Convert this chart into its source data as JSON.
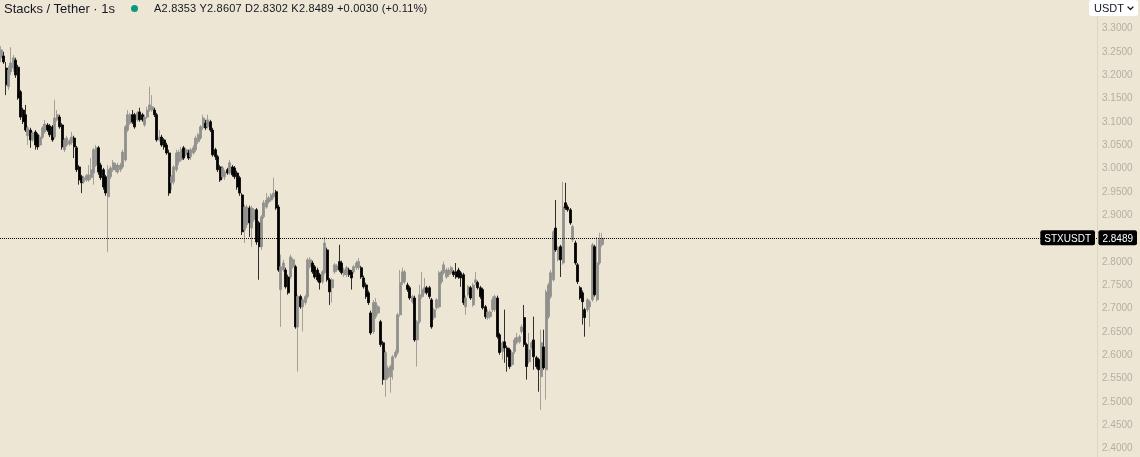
{
  "chart_data": {
    "type": "candlestick",
    "title": "Stacks / Tether · 1s",
    "subtitle": "A2.8353 Y2.8607 D2.8302 K2.8489 +0.0030 (+0.11%)",
    "ylabel": "USDT",
    "categories": [
      null,
      null,
      null,
      null,
      null,
      null,
      null,
      null,
      null,
      null,
      null,
      null,
      null,
      null,
      null,
      null,
      null,
      null,
      null,
      null,
      null,
      null,
      null,
      null,
      null,
      null,
      null,
      null,
      null,
      null,
      null,
      null,
      null,
      null,
      null,
      null,
      null,
      null,
      null,
      null,
      null,
      null,
      null,
      null,
      null,
      null,
      null,
      null,
      null,
      null,
      null,
      null,
      null,
      null,
      null,
      null,
      null,
      null,
      null,
      null,
      null,
      null,
      null,
      null,
      null,
      null,
      null,
      null,
      null,
      null,
      null,
      null,
      null,
      null,
      null,
      null,
      null,
      null,
      null,
      null,
      null,
      null,
      null,
      null,
      null,
      null,
      null,
      null,
      null,
      null,
      null,
      null,
      null,
      null,
      null,
      null,
      null,
      null,
      null,
      null,
      null,
      null,
      null,
      null,
      null,
      null,
      null,
      null,
      null,
      null,
      null,
      null,
      null,
      null,
      null,
      null,
      null,
      null,
      null,
      null,
      null,
      null,
      null,
      null,
      null,
      null,
      null,
      null,
      null,
      null,
      null,
      null,
      null,
      null,
      null,
      null,
      null,
      null,
      null,
      null,
      null,
      null,
      null,
      null,
      null,
      null,
      null,
      null,
      null,
      null,
      null,
      null,
      null,
      null,
      null,
      null,
      null,
      null,
      null,
      null,
      null,
      null,
      null,
      null,
      null,
      null,
      null,
      null,
      null,
      null,
      null,
      null,
      null,
      null,
      null,
      null,
      null,
      null,
      null,
      null,
      null,
      null,
      null,
      null,
      null,
      null,
      null,
      null,
      null,
      null,
      null,
      null,
      null,
      null,
      null,
      null,
      null,
      null,
      null,
      null,
      null,
      null,
      null,
      null,
      null,
      null,
      null,
      null,
      null,
      null,
      null,
      null,
      null,
      null,
      null,
      null,
      null,
      null,
      null,
      null,
      null,
      null,
      null,
      null,
      null,
      null,
      null,
      null,
      null,
      null,
      null,
      null,
      null,
      null,
      null,
      null,
      null,
      null,
      null,
      null,
      null,
      null,
      null,
      null,
      null,
      null,
      null,
      null,
      null,
      null,
      null,
      null,
      null,
      null,
      null,
      null,
      null,
      null,
      null,
      null,
      null,
      null,
      null,
      null,
      null,
      null,
      null,
      null,
      null,
      null,
      null,
      null,
      null,
      null,
      null,
      null,
      null,
      null,
      null,
      null,
      null,
      null,
      null,
      null,
      null,
      null,
      null,
      null,
      null,
      null,
      null,
      null,
      null,
      null,
      null,
      null,
      null,
      null,
      null,
      null,
      null,
      null,
      null,
      null,
      null,
      null,
      null,
      null,
      null,
      null,
      null,
      null,
      null,
      null,
      null,
      null,
      null,
      null,
      null,
      null,
      null,
      null,
      null,
      null,
      null,
      null,
      null,
      null,
      null,
      null,
      null,
      null,
      null,
      null,
      null,
      null,
      null,
      null,
      null,
      null,
      null,
      null,
      null,
      null,
      null,
      null,
      null,
      null,
      null,
      null,
      null,
      null,
      null,
      null,
      null,
      null,
      null,
      null,
      null,
      null,
      null,
      null,
      null,
      null,
      null,
      null,
      null,
      null,
      null,
      null,
      null,
      null,
      null,
      null,
      null,
      null,
      null,
      null,
      null,
      null,
      null,
      null,
      null,
      null,
      null,
      null,
      null,
      null,
      null,
      null,
      null,
      null,
      null,
      null,
      null,
      null,
      null,
      null,
      null,
      null,
      null,
      null,
      null,
      null,
      null,
      null,
      null,
      null,
      null,
      null,
      null,
      null,
      null,
      null,
      null,
      null,
      null,
      null,
      null,
      null,
      null,
      null,
      null,
      null,
      null,
      null,
      null,
      null,
      null,
      null,
      null,
      null,
      null,
      null,
      null,
      null,
      null,
      null,
      null,
      null,
      null,
      null,
      null,
      null,
      null,
      null,
      null,
      null,
      null,
      null,
      null
    ],
    "ohlc": [
      [
        3.236,
        3.261,
        3.227,
        3.253
      ],
      [
        3.24,
        3.249,
        3.223,
        3.227
      ],
      [
        3.214,
        3.227,
        3.156,
        3.178
      ],
      [
        3.174,
        3.219,
        3.167,
        3.21
      ],
      [
        3.206,
        3.259,
        3.199,
        3.225
      ],
      [
        3.214,
        3.242,
        3.206,
        3.236
      ],
      [
        3.231,
        3.236,
        3.193,
        3.199
      ],
      [
        3.216,
        3.221,
        3.146,
        3.15
      ],
      [
        3.163,
        3.167,
        3.103,
        3.109
      ],
      [
        3.124,
        3.129,
        3.094,
        3.099
      ],
      [
        3.114,
        3.135,
        3.077,
        3.081
      ],
      [
        3.069,
        3.09,
        3.049,
        3.086
      ],
      [
        3.081,
        3.086,
        3.043,
        3.06
      ],
      [
        3.06,
        3.079,
        3.056,
        3.075
      ],
      [
        3.077,
        3.081,
        3.039,
        3.049
      ],
      [
        3.071,
        3.075,
        3.039,
        3.045
      ],
      [
        3.049,
        3.071,
        3.045,
        3.066
      ],
      [
        3.066,
        3.09,
        3.062,
        3.086
      ],
      [
        3.077,
        3.103,
        3.073,
        3.094
      ],
      [
        3.092,
        3.096,
        3.077,
        3.081
      ],
      [
        3.09,
        3.094,
        3.066,
        3.071
      ],
      [
        3.088,
        3.092,
        3.056,
        3.06
      ],
      [
        3.066,
        3.146,
        3.062,
        3.107
      ],
      [
        3.103,
        3.124,
        3.099,
        3.114
      ],
      [
        3.109,
        3.114,
        3.084,
        3.088
      ],
      [
        3.092,
        3.096,
        3.039,
        3.045
      ],
      [
        3.039,
        3.064,
        3.034,
        3.06
      ],
      [
        3.049,
        3.069,
        3.045,
        3.064
      ],
      [
        3.051,
        3.062,
        3.047,
        3.058
      ],
      [
        3.054,
        3.077,
        3.049,
        3.066
      ],
      [
        3.064,
        3.069,
        3.021,
        3.045
      ],
      [
        3.043,
        3.047,
        2.991,
        2.996
      ],
      [
        3.002,
        3.006,
        2.964,
        2.974
      ],
      [
        2.981,
        2.985,
        2.946,
        2.968
      ],
      [
        2.97,
        2.983,
        2.966,
        2.979
      ],
      [
        2.974,
        2.987,
        2.97,
        2.983
      ],
      [
        2.974,
        3.006,
        2.97,
        2.985
      ],
      [
        2.979,
        3.021,
        2.974,
        2.996
      ],
      [
        2.989,
        3.043,
        2.964,
        3.039
      ],
      [
        3.006,
        3.049,
        3.002,
        3.043
      ],
      [
        3.043,
        3.047,
        2.985,
        2.991
      ],
      [
        3.006,
        3.011,
        2.974,
        2.979
      ],
      [
        2.996,
        3.0,
        2.953,
        2.959
      ],
      [
        2.981,
        2.985,
        2.94,
        2.946
      ],
      [
        2.938,
        3.006,
        2.82,
        2.996
      ],
      [
        2.981,
        3.004,
        2.976,
        3.0
      ],
      [
        2.996,
        3.017,
        2.991,
        3.011
      ],
      [
        2.996,
        3.011,
        2.991,
        3.006
      ],
      [
        2.991,
        3.011,
        2.987,
        3.006
      ],
      [
        2.996,
        3.011,
        2.991,
        3.006
      ],
      [
        3.002,
        3.039,
        2.998,
        3.034
      ],
      [
        3.017,
        3.092,
        3.013,
        3.088
      ],
      [
        3.081,
        3.124,
        3.077,
        3.114
      ],
      [
        3.096,
        3.118,
        3.092,
        3.114
      ],
      [
        3.114,
        3.124,
        3.094,
        3.099
      ],
      [
        3.114,
        3.118,
        3.084,
        3.088
      ],
      [
        3.103,
        3.122,
        3.099,
        3.118
      ],
      [
        3.12,
        3.129,
        3.099,
        3.103
      ],
      [
        3.114,
        3.118,
        3.099,
        3.103
      ],
      [
        3.092,
        3.114,
        3.088,
        3.109
      ],
      [
        3.109,
        3.131,
        3.105,
        3.124
      ],
      [
        3.124,
        3.174,
        3.12,
        3.135
      ],
      [
        3.124,
        3.156,
        3.12,
        3.131
      ],
      [
        3.124,
        3.129,
        3.109,
        3.114
      ],
      [
        3.114,
        3.118,
        3.056,
        3.06
      ],
      [
        3.06,
        3.081,
        3.056,
        3.066
      ],
      [
        3.066,
        3.071,
        3.045,
        3.049
      ],
      [
        3.06,
        3.064,
        3.039,
        3.045
      ],
      [
        3.049,
        3.054,
        3.028,
        3.032
      ],
      [
        3.032,
        3.039,
        2.94,
        2.946
      ],
      [
        2.968,
        2.985,
        2.953,
        2.981
      ],
      [
        2.97,
        3.006,
        2.964,
        3.002
      ],
      [
        2.996,
        3.039,
        2.991,
        3.032
      ],
      [
        3.013,
        3.039,
        3.006,
        3.034
      ],
      [
        3.017,
        3.045,
        3.013,
        3.039
      ],
      [
        3.043,
        3.047,
        3.017,
        3.021
      ],
      [
        3.028,
        3.043,
        3.024,
        3.039
      ],
      [
        3.032,
        3.039,
        3.017,
        3.021
      ],
      [
        3.024,
        3.043,
        3.017,
        3.039
      ],
      [
        3.032,
        3.049,
        3.028,
        3.043
      ],
      [
        3.039,
        3.069,
        3.034,
        3.064
      ],
      [
        3.056,
        3.075,
        3.051,
        3.071
      ],
      [
        3.064,
        3.092,
        3.06,
        3.088
      ],
      [
        3.086,
        3.114,
        3.081,
        3.107
      ],
      [
        3.096,
        3.103,
        3.081,
        3.086
      ],
      [
        3.088,
        3.114,
        3.084,
        3.103
      ],
      [
        3.099,
        3.103,
        3.077,
        3.081
      ],
      [
        3.081,
        3.086,
        3.024,
        3.028
      ],
      [
        3.039,
        3.043,
        3.017,
        3.024
      ],
      [
        3.024,
        3.028,
        2.991,
        2.996
      ],
      [
        3.002,
        3.006,
        2.97,
        2.974
      ],
      [
        2.981,
        3.004,
        2.976,
        3.0
      ],
      [
        2.981,
        2.996,
        2.974,
        2.991
      ],
      [
        2.996,
        3.0,
        2.985,
        2.989
      ],
      [
        2.989,
        3.017,
        2.985,
        3.011
      ],
      [
        3.002,
        3.006,
        2.981,
        2.985
      ],
      [
        3.0,
        3.004,
        2.976,
        2.981
      ],
      [
        2.989,
        2.994,
        2.953,
        2.959
      ],
      [
        2.979,
        2.983,
        2.94,
        2.946
      ],
      [
        2.942,
        2.946,
        2.856,
        2.863
      ],
      [
        2.867,
        2.921,
        2.839,
        2.916
      ],
      [
        2.878,
        2.921,
        2.871,
        2.916
      ],
      [
        2.914,
        2.919,
        2.852,
        2.882
      ],
      [
        2.871,
        2.919,
        2.831,
        2.914
      ],
      [
        2.889,
        2.914,
        2.884,
        2.91
      ],
      [
        2.91,
        2.914,
        2.835,
        2.841
      ],
      [
        2.882,
        2.886,
        2.76,
        2.831
      ],
      [
        2.831,
        2.899,
        2.824,
        2.895
      ],
      [
        2.895,
        2.931,
        2.891,
        2.925
      ],
      [
        2.916,
        2.946,
        2.912,
        2.931
      ],
      [
        2.927,
        2.94,
        2.923,
        2.936
      ],
      [
        2.931,
        2.946,
        2.927,
        2.942
      ],
      [
        2.938,
        2.979,
        2.934,
        2.946
      ],
      [
        2.949,
        2.953,
        2.91,
        2.914
      ],
      [
        2.916,
        2.921,
        2.777,
        2.781
      ],
      [
        2.739,
        2.814,
        2.659,
        2.788
      ],
      [
        2.781,
        2.803,
        2.777,
        2.796
      ],
      [
        2.781,
        2.786,
        2.741,
        2.745
      ],
      [
        2.766,
        2.771,
        2.728,
        2.732
      ],
      [
        2.766,
        2.814,
        2.762,
        2.809
      ],
      [
        2.788,
        2.807,
        2.784,
        2.803
      ],
      [
        2.788,
        2.792,
        2.655,
        2.659
      ],
      [
        2.659,
        2.728,
        2.563,
        2.724
      ],
      [
        2.724,
        2.728,
        2.698,
        2.702
      ],
      [
        2.702,
        2.721,
        2.649,
        2.717
      ],
      [
        2.711,
        2.728,
        2.706,
        2.724
      ],
      [
        2.724,
        2.807,
        2.719,
        2.803
      ],
      [
        2.788,
        2.809,
        2.784,
        2.803
      ],
      [
        2.796,
        2.801,
        2.773,
        2.777
      ],
      [
        2.788,
        2.792,
        2.762,
        2.766
      ],
      [
        2.781,
        2.786,
        2.756,
        2.76
      ],
      [
        2.771,
        2.775,
        2.739,
        2.754
      ],
      [
        2.756,
        2.781,
        2.751,
        2.777
      ],
      [
        2.775,
        2.852,
        2.771,
        2.839
      ],
      [
        2.824,
        2.829,
        2.756,
        2.76
      ],
      [
        2.76,
        2.764,
        2.706,
        2.734
      ],
      [
        2.743,
        2.764,
        2.711,
        2.76
      ],
      [
        2.777,
        2.796,
        2.773,
        2.792
      ],
      [
        2.781,
        2.794,
        2.777,
        2.79
      ],
      [
        2.799,
        2.835,
        2.777,
        2.781
      ],
      [
        2.796,
        2.801,
        2.771,
        2.775
      ],
      [
        2.771,
        2.786,
        2.766,
        2.781
      ],
      [
        2.771,
        2.79,
        2.766,
        2.786
      ],
      [
        2.781,
        2.786,
        2.766,
        2.771
      ],
      [
        2.777,
        2.781,
        2.739,
        2.764
      ],
      [
        2.777,
        2.792,
        2.773,
        2.788
      ],
      [
        2.786,
        2.801,
        2.781,
        2.796
      ],
      [
        2.786,
        2.807,
        2.781,
        2.799
      ],
      [
        2.786,
        2.79,
        2.762,
        2.766
      ],
      [
        2.764,
        2.769,
        2.741,
        2.745
      ],
      [
        2.749,
        2.754,
        2.719,
        2.724
      ],
      [
        2.732,
        2.737,
        2.706,
        2.711
      ],
      [
        2.689,
        2.694,
        2.642,
        2.646
      ],
      [
        2.649,
        2.717,
        2.644,
        2.711
      ],
      [
        2.681,
        2.721,
        2.676,
        2.711
      ],
      [
        2.689,
        2.706,
        2.685,
        2.702
      ],
      [
        2.67,
        2.674,
        2.616,
        2.621
      ],
      [
        2.625,
        2.629,
        2.535,
        2.546
      ],
      [
        2.546,
        2.608,
        2.509,
        2.604
      ],
      [
        2.55,
        2.576,
        2.546,
        2.571
      ],
      [
        2.552,
        2.578,
        2.518,
        2.574
      ],
      [
        2.567,
        2.599,
        2.546,
        2.595
      ],
      [
        2.595,
        2.61,
        2.591,
        2.604
      ],
      [
        2.604,
        2.689,
        2.599,
        2.685
      ],
      [
        2.685,
        2.781,
        2.681,
        2.754
      ],
      [
        2.754,
        2.786,
        2.749,
        2.777
      ],
      [
        2.756,
        2.781,
        2.751,
        2.777
      ],
      [
        2.749,
        2.754,
        2.734,
        2.739
      ],
      [
        2.743,
        2.747,
        2.717,
        2.721
      ],
      [
        2.713,
        2.728,
        2.709,
        2.724
      ],
      [
        2.721,
        2.726,
        2.627,
        2.631
      ],
      [
        2.631,
        2.674,
        2.574,
        2.67
      ],
      [
        2.67,
        2.749,
        2.666,
        2.728
      ],
      [
        2.724,
        2.777,
        2.719,
        2.739
      ],
      [
        2.734,
        2.764,
        2.73,
        2.743
      ],
      [
        2.743,
        2.747,
        2.728,
        2.732
      ],
      [
        2.743,
        2.747,
        2.719,
        2.724
      ],
      [
        2.717,
        2.721,
        2.655,
        2.659
      ],
      [
        2.679,
        2.7,
        2.674,
        2.696
      ],
      [
        2.7,
        2.721,
        2.696,
        2.717
      ],
      [
        2.702,
        2.779,
        2.698,
        2.775
      ],
      [
        2.756,
        2.781,
        2.751,
        2.777
      ],
      [
        2.775,
        2.799,
        2.771,
        2.792
      ],
      [
        2.766,
        2.786,
        2.762,
        2.781
      ],
      [
        2.771,
        2.786,
        2.766,
        2.781
      ],
      [
        2.775,
        2.79,
        2.771,
        2.786
      ],
      [
        2.777,
        2.781,
        2.766,
        2.771
      ],
      [
        2.777,
        2.796,
        2.762,
        2.766
      ],
      [
        2.781,
        2.786,
        2.762,
        2.766
      ],
      [
        2.775,
        2.779,
        2.745,
        2.764
      ],
      [
        2.771,
        2.775,
        2.706,
        2.711
      ],
      [
        2.702,
        2.726,
        2.685,
        2.721
      ],
      [
        2.728,
        2.749,
        2.724,
        2.745
      ],
      [
        2.743,
        2.747,
        2.717,
        2.721
      ],
      [
        2.706,
        2.754,
        2.702,
        2.749
      ],
      [
        2.754,
        2.777,
        2.749,
        2.76
      ],
      [
        2.754,
        2.758,
        2.739,
        2.743
      ],
      [
        2.743,
        2.747,
        2.719,
        2.724
      ],
      [
        2.739,
        2.743,
        2.696,
        2.7
      ],
      [
        2.702,
        2.706,
        2.676,
        2.681
      ],
      [
        2.679,
        2.696,
        2.674,
        2.691
      ],
      [
        2.681,
        2.696,
        2.676,
        2.691
      ],
      [
        2.696,
        2.724,
        2.691,
        2.717
      ],
      [
        2.696,
        2.728,
        2.691,
        2.724
      ],
      [
        2.721,
        2.726,
        2.634,
        2.638
      ],
      [
        2.642,
        2.646,
        2.599,
        2.604
      ],
      [
        2.606,
        2.629,
        2.589,
        2.625
      ],
      [
        2.627,
        2.696,
        2.582,
        2.614
      ],
      [
        2.614,
        2.619,
        2.563,
        2.595
      ],
      [
        2.61,
        2.614,
        2.569,
        2.574
      ],
      [
        2.578,
        2.608,
        2.574,
        2.604
      ],
      [
        2.606,
        2.636,
        2.601,
        2.631
      ],
      [
        2.625,
        2.646,
        2.621,
        2.636
      ],
      [
        2.627,
        2.642,
        2.623,
        2.638
      ],
      [
        2.649,
        2.664,
        2.644,
        2.659
      ],
      [
        2.679,
        2.706,
        2.616,
        2.621
      ],
      [
        2.621,
        2.625,
        2.546,
        2.574
      ],
      [
        2.584,
        2.646,
        2.58,
        2.61
      ],
      [
        2.614,
        2.629,
        2.61,
        2.625
      ],
      [
        2.631,
        2.681,
        2.567,
        2.595
      ],
      [
        2.593,
        2.597,
        2.569,
        2.574
      ],
      [
        2.589,
        2.593,
        2.52,
        2.567
      ],
      [
        2.552,
        2.653,
        2.481,
        2.625
      ],
      [
        2.616,
        2.653,
        2.567,
        2.571
      ],
      [
        2.567,
        2.739,
        2.503,
        2.734
      ],
      [
        2.681,
        2.754,
        2.676,
        2.749
      ],
      [
        2.724,
        2.781,
        2.719,
        2.775
      ],
      [
        2.76,
        2.867,
        2.756,
        2.863
      ],
      [
        2.871,
        2.931,
        2.82,
        2.824
      ],
      [
        2.803,
        2.833,
        2.799,
        2.829
      ],
      [
        2.831,
        2.835,
        2.766,
        2.803
      ],
      [
        2.796,
        2.97,
        2.792,
        2.916
      ],
      [
        2.925,
        2.968,
        2.91,
        2.914
      ],
      [
        2.916,
        2.921,
        2.906,
        2.91
      ],
      [
        2.91,
        2.914,
        2.878,
        2.882
      ],
      [
        2.846,
        2.878,
        2.841,
        2.874
      ],
      [
        2.839,
        2.844,
        2.792,
        2.796
      ],
      [
        2.792,
        2.796,
        2.751,
        2.756
      ],
      [
        2.743,
        2.747,
        2.717,
        2.721
      ],
      [
        2.732,
        2.737,
        2.664,
        2.713
      ],
      [
        2.696,
        2.7,
        2.638,
        2.679
      ],
      [
        2.696,
        2.721,
        2.691,
        2.717
      ],
      [
        2.702,
        2.717,
        2.659,
        2.713
      ],
      [
        2.717,
        2.839,
        2.713,
        2.835
      ],
      [
        2.831,
        2.835,
        2.724,
        2.728
      ],
      [
        2.717,
        2.852,
        2.713,
        2.796
      ],
      [
        2.796,
        2.861,
        2.792,
        2.846
      ],
      [
        2.8353,
        2.8607,
        2.8302,
        2.8489
      ],
      null,
      null,
      null,
      null,
      null,
      null,
      null,
      null,
      null,
      null,
      null,
      null,
      null,
      null,
      null,
      null,
      null,
      null,
      null,
      null,
      null,
      null,
      null,
      null,
      null,
      null,
      null,
      null,
      null,
      null,
      null,
      null,
      null,
      null,
      null,
      null,
      null,
      null,
      null,
      null,
      null,
      null,
      null,
      null,
      null,
      null,
      null,
      null,
      null,
      null,
      null,
      null,
      null,
      null,
      null,
      null,
      null,
      null,
      null,
      null,
      null,
      null,
      null,
      null,
      null,
      null,
      null,
      null,
      null,
      null,
      null,
      null,
      null,
      null,
      null,
      null,
      null,
      null,
      null,
      null,
      null,
      null,
      null,
      null,
      null,
      null,
      null,
      null,
      null,
      null,
      null,
      null,
      null,
      null,
      null,
      null,
      null,
      null,
      null,
      null,
      null,
      null,
      null,
      null,
      null,
      null,
      null,
      null,
      null,
      null,
      null,
      null,
      null,
      null,
      null,
      null,
      null,
      null,
      null,
      null,
      null,
      null,
      null,
      null,
      null,
      null,
      null,
      null,
      null,
      null,
      null,
      null,
      null,
      null,
      null,
      null,
      null,
      null,
      null,
      null,
      null,
      null,
      null,
      null,
      null,
      null,
      null,
      null,
      null,
      null,
      null,
      null,
      null,
      null,
      null,
      null,
      null,
      null,
      null,
      null,
      null,
      null,
      null,
      null,
      null,
      null,
      null,
      null,
      null,
      null,
      null,
      null,
      null,
      null,
      null,
      null,
      null,
      null,
      null,
      null,
      null,
      null,
      null,
      null,
      null,
      null,
      null,
      null,
      null,
      null,
      null,
      null,
      null,
      null,
      null,
      null,
      null,
      null,
      null,
      null,
      null,
      null,
      null
    ],
    "colors": [
      "#8f8f8b",
      "#000000",
      "#000000",
      "#8f8f8b",
      "#8f8f8b",
      "#8f8f8b",
      "#000000",
      "#000000",
      "#000000",
      "#000000",
      "#000000",
      "#8f8f8b",
      "#000000",
      "#8f8f8b",
      "#000000",
      "#000000",
      "#8f8f8b",
      "#8f8f8b",
      "#8f8f8b",
      "#000000",
      "#000000",
      "#000000",
      "#8f8f8b",
      "#8f8f8b",
      "#000000",
      "#000000",
      "#8f8f8b",
      "#8f8f8b",
      "#8f8f8b",
      "#8f8f8b",
      "#000000",
      "#000000",
      "#000000",
      "#000000",
      "#8f8f8b",
      "#8f8f8b",
      "#8f8f8b",
      "#8f8f8b",
      "#8f8f8b",
      "#8f8f8b",
      "#000000",
      "#000000",
      "#000000",
      "#000000",
      "#8f8f8b",
      "#8f8f8b",
      "#8f8f8b",
      "#8f8f8b",
      "#8f8f8b",
      "#8f8f8b",
      "#8f8f8b",
      "#8f8f8b",
      "#8f8f8b",
      "#8f8f8b",
      "#000000",
      "#000000",
      "#8f8f8b",
      "#000000",
      "#000000",
      "#8f8f8b",
      "#8f8f8b",
      "#8f8f8b",
      "#8f8f8b",
      "#000000",
      "#000000",
      "#8f8f8b",
      "#000000",
      "#000000",
      "#000000",
      "#000000",
      "#8f8f8b",
      "#8f8f8b",
      "#8f8f8b",
      "#8f8f8b",
      "#8f8f8b",
      "#000000",
      "#8f8f8b",
      "#000000",
      "#8f8f8b",
      "#8f8f8b",
      "#8f8f8b",
      "#8f8f8b",
      "#8f8f8b",
      "#8f8f8b",
      "#000000",
      "#8f8f8b",
      "#000000",
      "#000000",
      "#000000",
      "#000000",
      "#000000",
      "#8f8f8b",
      "#8f8f8b",
      "#000000",
      "#8f8f8b",
      "#000000",
      "#000000",
      "#000000",
      "#000000",
      "#000000",
      "#8f8f8b",
      "#8f8f8b",
      "#000000",
      "#8f8f8b",
      "#8f8f8b",
      "#000000",
      "#000000",
      "#8f8f8b",
      "#8f8f8b",
      "#8f8f8b",
      "#8f8f8b",
      "#8f8f8b",
      "#8f8f8b",
      "#000000",
      "#000000",
      "#8f8f8b",
      "#8f8f8b",
      "#000000",
      "#000000",
      "#8f8f8b",
      "#8f8f8b",
      "#000000",
      "#8f8f8b",
      "#000000",
      "#8f8f8b",
      "#8f8f8b",
      "#8f8f8b",
      "#8f8f8b",
      "#000000",
      "#000000",
      "#000000",
      "#000000",
      "#8f8f8b",
      "#8f8f8b",
      "#000000",
      "#000000",
      "#8f8f8b",
      "#8f8f8b",
      "#8f8f8b",
      "#000000",
      "#000000",
      "#8f8f8b",
      "#8f8f8b",
      "#000000",
      "#000000",
      "#8f8f8b",
      "#8f8f8b",
      "#8f8f8b",
      "#000000",
      "#000000",
      "#000000",
      "#000000",
      "#000000",
      "#8f8f8b",
      "#8f8f8b",
      "#8f8f8b",
      "#000000",
      "#000000",
      "#8f8f8b",
      "#8f8f8b",
      "#8f8f8b",
      "#8f8f8b",
      "#8f8f8b",
      "#8f8f8b",
      "#8f8f8b",
      "#8f8f8b",
      "#8f8f8b",
      "#000000",
      "#000000",
      "#8f8f8b",
      "#000000",
      "#8f8f8b",
      "#8f8f8b",
      "#8f8f8b",
      "#8f8f8b",
      "#000000",
      "#000000",
      "#000000",
      "#8f8f8b",
      "#8f8f8b",
      "#8f8f8b",
      "#8f8f8b",
      "#8f8f8b",
      "#8f8f8b",
      "#8f8f8b",
      "#8f8f8b",
      "#000000",
      "#000000",
      "#000000",
      "#000000",
      "#000000",
      "#8f8f8b",
      "#8f8f8b",
      "#000000",
      "#8f8f8b",
      "#8f8f8b",
      "#000000",
      "#000000",
      "#000000",
      "#000000",
      "#8f8f8b",
      "#8f8f8b",
      "#8f8f8b",
      "#8f8f8b",
      "#000000",
      "#000000",
      "#8f8f8b",
      "#000000",
      "#000000",
      "#000000",
      "#8f8f8b",
      "#8f8f8b",
      "#8f8f8b",
      "#8f8f8b",
      "#8f8f8b",
      "#000000",
      "#000000",
      "#8f8f8b",
      "#8f8f8b",
      "#000000",
      "#000000",
      "#000000",
      "#8f8f8b",
      "#000000",
      "#8f8f8b",
      "#8f8f8b",
      "#8f8f8b",
      "#8f8f8b",
      "#000000",
      "#8f8f8b",
      "#000000",
      "#8f8f8b",
      "#000000",
      "#000000",
      "#000000",
      "#8f8f8b",
      "#000000",
      "#000000",
      "#000000",
      "#000000",
      "#000000",
      "#8f8f8b",
      "#8f8f8b",
      "#8f8f8b",
      "#000000",
      "#8f8f8b",
      "#8f8f8b",
      "#8f8f8b",
      null,
      null,
      null,
      null,
      null,
      null,
      null,
      null,
      null,
      null,
      null,
      null,
      null,
      null,
      null,
      null,
      null,
      null,
      null,
      null,
      null,
      null,
      null,
      null,
      null,
      null,
      null,
      null,
      null,
      null,
      null,
      null,
      null,
      null,
      null,
      null,
      null,
      null,
      null,
      null,
      null,
      null,
      null,
      null,
      null,
      null,
      null,
      null,
      null,
      null,
      null,
      null,
      null,
      null,
      null,
      null,
      null,
      null,
      null,
      null,
      null,
      null,
      null,
      null,
      null,
      null,
      null,
      null,
      null,
      null,
      null,
      null,
      null,
      null,
      null,
      null,
      null,
      null,
      null,
      null,
      null,
      null,
      null,
      null,
      null,
      null,
      null,
      null,
      null,
      null,
      null,
      null,
      null,
      null,
      null,
      null,
      null,
      null,
      null,
      null,
      null,
      null,
      null,
      null,
      null,
      null,
      null,
      null,
      null,
      null,
      null,
      null,
      null,
      null,
      null,
      null,
      null,
      null,
      null,
      null,
      null,
      null,
      null,
      null,
      null,
      null,
      null,
      null,
      null,
      null,
      null,
      null,
      null,
      null,
      null,
      null,
      null,
      null,
      null,
      null,
      null,
      null,
      null,
      null,
      null,
      null,
      null,
      null,
      null,
      null,
      null,
      null,
      null,
      null,
      null,
      null,
      null,
      null,
      null,
      null,
      null,
      null,
      null,
      null,
      null,
      null,
      null,
      null,
      null,
      null,
      null,
      null,
      null,
      null,
      null,
      null,
      null,
      null,
      null,
      null,
      null,
      null,
      null,
      null,
      null,
      null,
      null,
      null,
      null,
      null,
      null,
      null,
      null,
      null,
      null,
      null,
      null,
      null,
      null,
      null,
      null,
      null,
      null
    ],
    "ylim": [
      2.38,
      3.36
    ],
    "yticks": [
      {
        "value": 3.3,
        "label": "3.3000"
      },
      {
        "value": 3.25,
        "label": "3.2500"
      },
      {
        "value": 3.2,
        "label": "3.2000"
      },
      {
        "value": 3.15,
        "label": "3.1500"
      },
      {
        "value": 3.1,
        "label": "3.1000"
      },
      {
        "value": 3.05,
        "label": "3.0500"
      },
      {
        "value": 3.0,
        "label": "3.0000"
      },
      {
        "value": 2.95,
        "label": "2.9500"
      },
      {
        "value": 2.9,
        "label": "2.9000"
      },
      {
        "value": 2.8,
        "label": "2.8000"
      },
      {
        "value": 2.75,
        "label": "2.7500"
      },
      {
        "value": 2.7,
        "label": "2.7000"
      },
      {
        "value": 2.65,
        "label": "2.6500"
      },
      {
        "value": 2.6,
        "label": "2.6000"
      },
      {
        "value": 2.55,
        "label": "2.5500"
      },
      {
        "value": 2.5,
        "label": "2.5000"
      },
      {
        "value": 2.45,
        "label": "2.4500"
      },
      {
        "value": 2.4,
        "label": "2.4000"
      }
    ],
    "ref_lines": [
      {
        "axis": "y",
        "value": 2.8489,
        "label": "STXUSDT",
        "color": "#000000",
        "line_style": "dotted"
      }
    ],
    "annotations": [
      {
        "text": "2.8489",
        "y": 2.8489
      }
    ],
    "tick_labels": "y"
  }
}
